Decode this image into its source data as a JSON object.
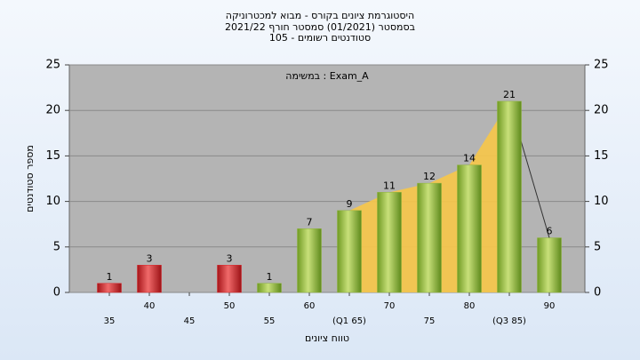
{
  "chart_data": {
    "type": "bar",
    "title": [
      "היסטוגרמת ציונים בקורס - מבוא למכטרוניקה",
      "בסמסטר  (01/2021)  סמסטר חורף 2021/22",
      "סטודנטים רשומים - 105"
    ],
    "annotation": "במשימה : Exam_A",
    "x_label": "טווח ציונים",
    "y_label": "מספר סטודנטים",
    "categories": [
      "35",
      "40",
      "45",
      "50",
      "55",
      "60",
      "(Q1 65)",
      "70",
      "75",
      "80",
      "(Q3 85)",
      "90"
    ],
    "values": [
      1,
      3,
      0,
      3,
      1,
      7,
      9,
      11,
      12,
      14,
      21,
      6
    ],
    "colors": [
      "#d9262b",
      "#d9262b",
      "#d9262b",
      "#d9262b",
      "#8db33a",
      "#8db33a",
      "#8db33a",
      "#8db33a",
      "#8db33a",
      "#8db33a",
      "#8db33a",
      "#8db33a"
    ],
    "ylim": [
      0,
      25
    ],
    "yticks": [
      0,
      5,
      10,
      15,
      20,
      25
    ],
    "y2lim": [
      0,
      25
    ],
    "y2ticks": [
      0,
      5,
      10,
      15,
      20,
      25
    ],
    "grid": true
  }
}
